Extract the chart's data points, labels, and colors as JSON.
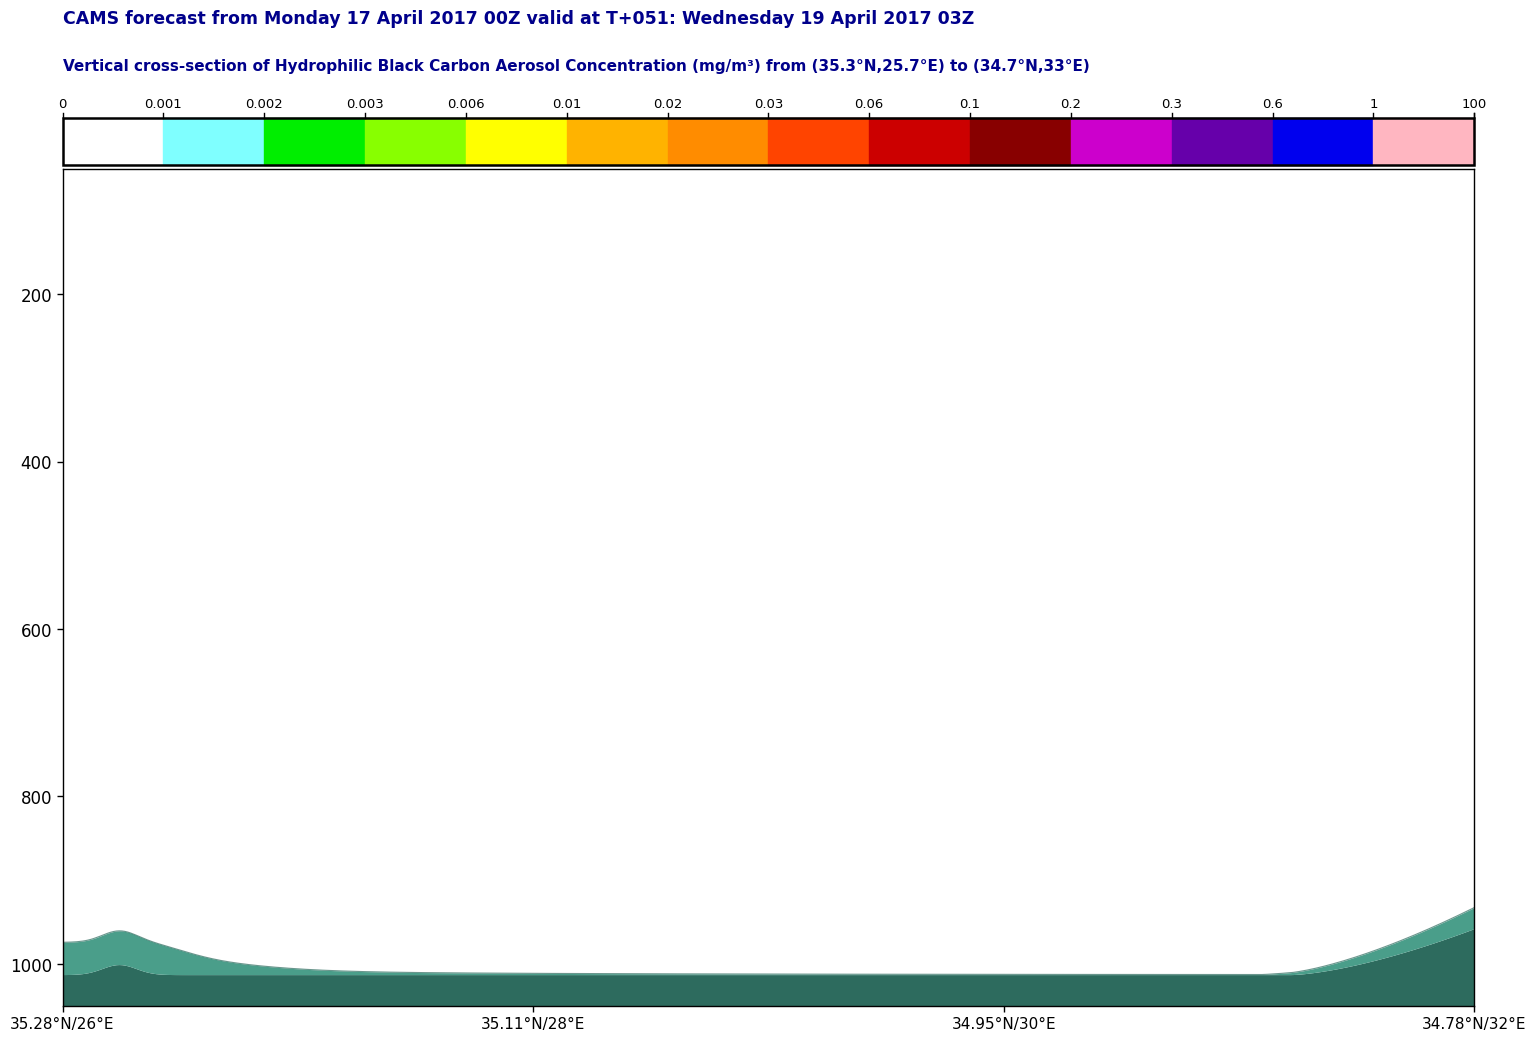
{
  "title1": "CAMS forecast from Monday 17 April 2017 00Z valid at T+051: Wednesday 19 April 2017 03Z",
  "title2": "Vertical cross-section of Hydrophilic Black Carbon Aerosol Concentration (mg/m³) from (35.3°N,25.7°E) to (34.7°N,33°E)",
  "title_color": "#00008B",
  "colorbar_tick_labels": [
    "0",
    "0.001",
    "0.002",
    "0.003",
    "0.006",
    "0.01",
    "0.02",
    "0.03",
    "0.06",
    "0.1",
    "0.2",
    "0.3",
    "0.6",
    "1",
    "100"
  ],
  "colorbar_colors": [
    "#FFFFFF",
    "#7FFFFF",
    "#00EE00",
    "#88FF00",
    "#FFFF00",
    "#FFB300",
    "#FF8C00",
    "#FF4400",
    "#CC0000",
    "#880000",
    "#CC00CC",
    "#6600AA",
    "#0000EE",
    "#FFB6C1"
  ],
  "ylim": [
    1050,
    50
  ],
  "yticks": [
    200,
    400,
    600,
    800,
    1000
  ],
  "xtick_labels": [
    "35.28°N/26°E",
    "35.11°N/28°E",
    "34.95°N/30°E",
    "34.78°N/32°E"
  ],
  "fill_color_dark": "#2D6B5E",
  "fill_color_light": "#4A9E8A",
  "bg_color": "#FFFFFF"
}
